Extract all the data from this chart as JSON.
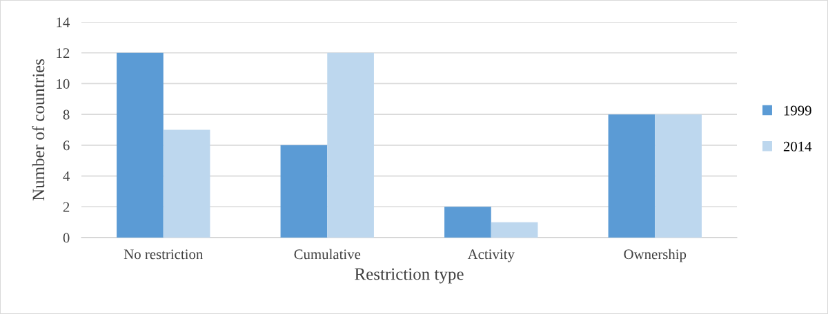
{
  "chart_data": {
    "type": "bar",
    "xlabel": "Restriction type",
    "ylabel": "Number of countries",
    "categories": [
      "No restriction",
      "Cumulative",
      "Activity",
      "Ownership"
    ],
    "series": [
      {
        "name": "1999",
        "color": "#5b9bd5",
        "values": [
          12,
          6,
          2,
          8
        ]
      },
      {
        "name": "2014",
        "color": "#bdd7ee",
        "values": [
          7,
          12,
          1,
          8
        ]
      }
    ],
    "ylim": [
      0,
      14
    ],
    "yticks": [
      0,
      2,
      4,
      6,
      8,
      10,
      12,
      14
    ],
    "grid": "y",
    "legend": "right"
  }
}
